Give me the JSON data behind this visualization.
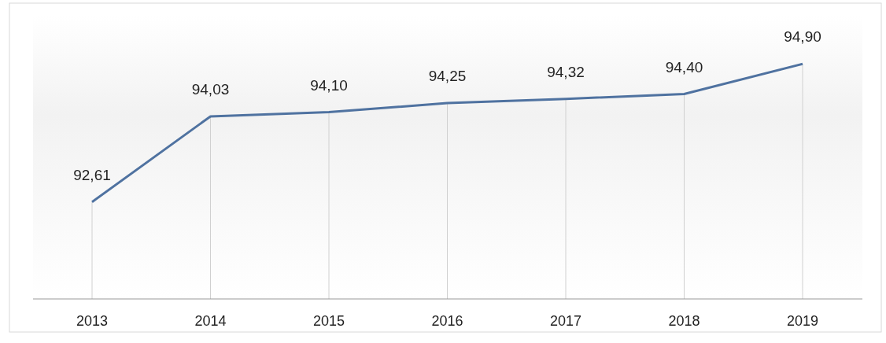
{
  "chart_data": {
    "type": "line",
    "categories": [
      "2013",
      "2014",
      "2015",
      "2016",
      "2017",
      "2018",
      "2019"
    ],
    "series": [
      {
        "color": "#4f72a0",
        "values": [
          92.61,
          94.03,
          94.1,
          94.25,
          94.32,
          94.4,
          94.9
        ],
        "value_labels": [
          "92,61",
          "94,03",
          "94,10",
          "94,25",
          "94,32",
          "94,40",
          "94,90"
        ]
      }
    ],
    "ylim": [
      91,
      95.7
    ],
    "grid": "x",
    "marker": "none",
    "line_style": "solid"
  }
}
